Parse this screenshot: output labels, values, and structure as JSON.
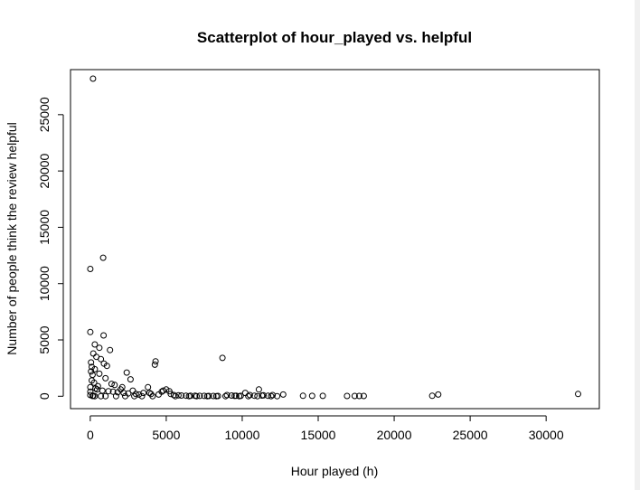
{
  "chart_data": {
    "type": "scatter",
    "title": "Scatterplot of hour_played vs. helpful",
    "xlabel": "Hour played (h)",
    "ylabel": "Number of people think the review helpful",
    "xlim": [
      -1300,
      33500
    ],
    "ylim": [
      -1100,
      29000
    ],
    "xticks": [
      "0",
      "5000",
      "10000",
      "15000",
      "20000",
      "25000",
      "30000"
    ],
    "yticks": [
      "0",
      "5000",
      "10000",
      "15000",
      "20000",
      "25000"
    ],
    "grid": false,
    "legend": "none",
    "series": [
      {
        "point_color": "#000000",
        "x": [
          180,
          0,
          850,
          0,
          880,
          300,
          1300,
          600,
          200,
          400,
          700,
          900,
          1100,
          300,
          50,
          100,
          4300,
          4250,
          8700,
          2400,
          2650,
          1600,
          1000,
          150,
          250,
          500,
          350,
          450,
          800,
          1200,
          1500,
          1800,
          2000,
          2200,
          2500,
          2800,
          3000,
          3200,
          3500,
          3800,
          4000,
          4500,
          4800,
          5000,
          5200,
          5500,
          5800,
          6000,
          6300,
          6600,
          6900,
          7200,
          7500,
          7800,
          8100,
          8400,
          9000,
          9300,
          9600,
          9900,
          10200,
          10500,
          10800,
          11100,
          11400,
          11700,
          12000,
          12700,
          14000,
          14600,
          15300,
          16900,
          17400,
          17700,
          18000,
          22500,
          22900,
          32100,
          9500,
          11300,
          3900,
          5300,
          4700,
          2100,
          1400,
          600,
          100,
          50,
          0,
          0,
          0,
          200,
          150,
          300,
          700,
          1000,
          1700,
          2300,
          2900,
          3400,
          4100,
          5600,
          6500,
          7000,
          7700,
          8300,
          8900,
          9800,
          10400,
          11000,
          11900,
          12300
        ],
        "y": [
          28200,
          11300,
          12300,
          5700,
          5400,
          4600,
          4100,
          4300,
          3800,
          3500,
          3300,
          2900,
          2700,
          2400,
          3000,
          2600,
          3100,
          2800,
          3400,
          2100,
          1500,
          1000,
          1600,
          1900,
          1200,
          900,
          700,
          600,
          500,
          450,
          400,
          350,
          600,
          300,
          250,
          500,
          200,
          150,
          300,
          800,
          200,
          150,
          500,
          600,
          450,
          100,
          80,
          60,
          50,
          40,
          40,
          30,
          30,
          20,
          20,
          20,
          100,
          60,
          40,
          30,
          300,
          100,
          50,
          600,
          80,
          40,
          100,
          150,
          40,
          30,
          30,
          20,
          20,
          20,
          20,
          40,
          150,
          200,
          30,
          60,
          300,
          200,
          400,
          800,
          1100,
          2000,
          1400,
          2200,
          800,
          400,
          100,
          50,
          20,
          10,
          10,
          10,
          10,
          10,
          10,
          10,
          10,
          10,
          10,
          10,
          10,
          10,
          10,
          10,
          10,
          10,
          10,
          10
        ]
      }
    ]
  }
}
